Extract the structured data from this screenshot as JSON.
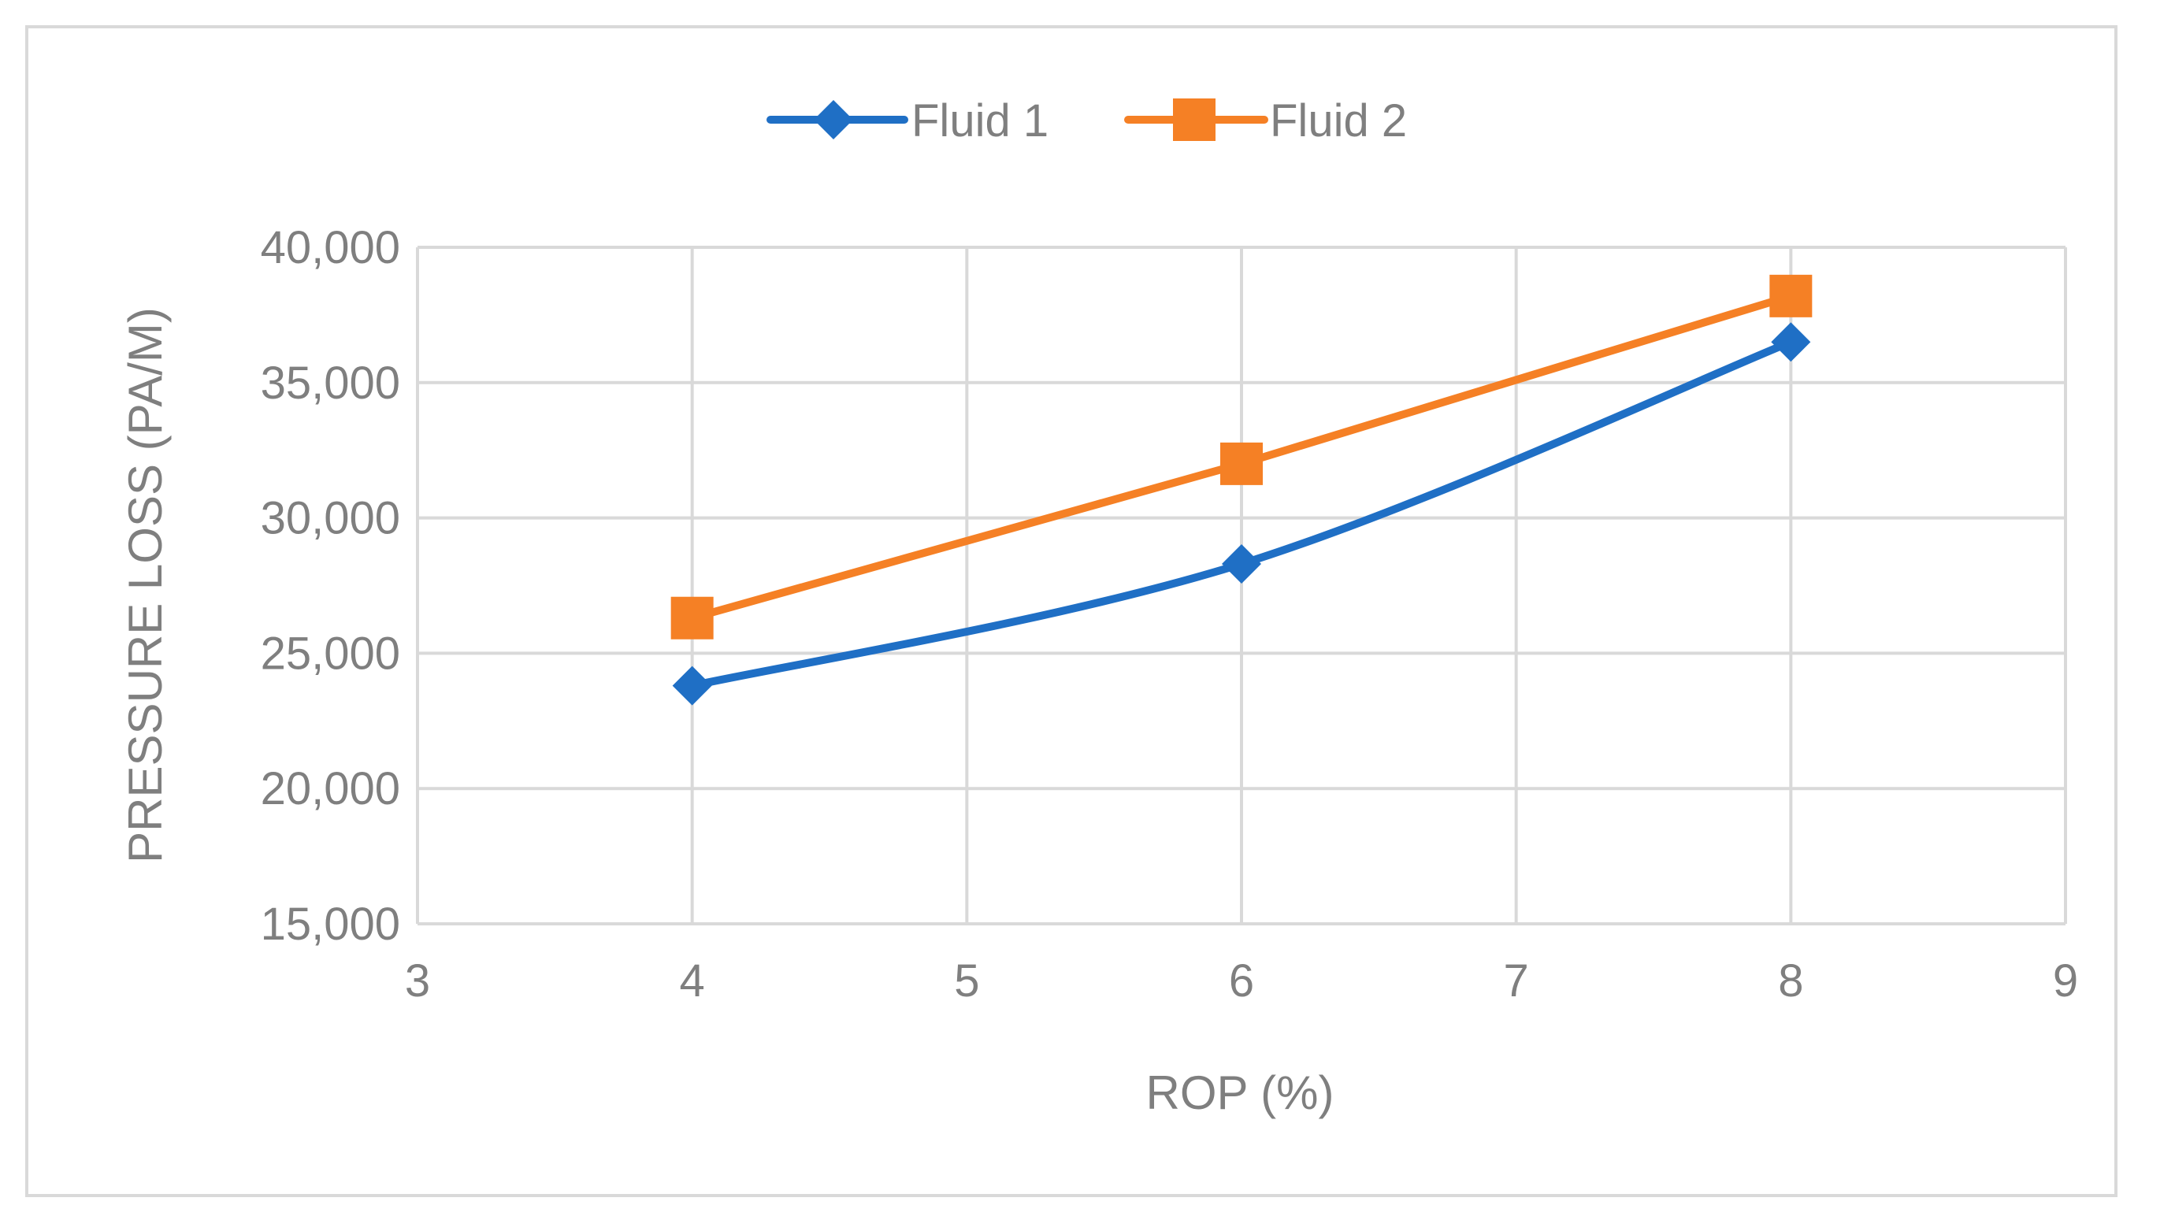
{
  "chart_data": {
    "type": "line",
    "title": "",
    "xlabel": "ROP (%)",
    "ylabel": "PRESSURE LOSS (PA/M)",
    "xlim": [
      3,
      9
    ],
    "ylim": [
      15000,
      40000
    ],
    "x_ticks": [
      3,
      4,
      5,
      6,
      7,
      8,
      9
    ],
    "y_ticks": [
      15000,
      20000,
      25000,
      30000,
      35000,
      40000
    ],
    "x_tick_labels": [
      "3",
      "4",
      "5",
      "6",
      "7",
      "8",
      "9"
    ],
    "y_tick_labels": [
      "15,000",
      "20,000",
      "25,000",
      "30,000",
      "35,000",
      "40,000"
    ],
    "grid": true,
    "legend_position": "top-center",
    "series": [
      {
        "name": "Fluid 1",
        "color": "#1f6fc5",
        "marker": "diamond",
        "smooth": true,
        "x": [
          4,
          6,
          8
        ],
        "y": [
          23800,
          28300,
          36500
        ]
      },
      {
        "name": "Fluid 2",
        "color": "#f58025",
        "marker": "square",
        "smooth": false,
        "x": [
          4,
          6,
          8
        ],
        "y": [
          26300,
          32000,
          38200
        ]
      }
    ]
  }
}
